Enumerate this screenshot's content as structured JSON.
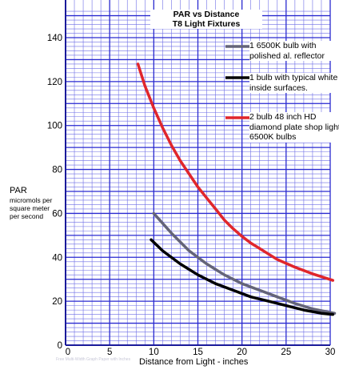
{
  "chart_data": {
    "type": "line",
    "title": "PAR vs Distance",
    "subtitle": "T8 Light Fixtures",
    "xlabel": "Distance from Light - inches",
    "ylabel": "PAR",
    "ylabel_sub": "micromols per square meter per second",
    "xlim": [
      0,
      30
    ],
    "ylim": [
      0,
      150
    ],
    "xticks": [
      0,
      5,
      10,
      15,
      20,
      25,
      30
    ],
    "yticks": [
      0,
      20,
      40,
      60,
      80,
      100,
      120,
      140
    ],
    "grid": true,
    "legend_placement": "top-right",
    "series": [
      {
        "name": "1 6500K bulb with polished al. reflector",
        "color": "#646478",
        "x": [
          10,
          12,
          14,
          16,
          18,
          20,
          22,
          24,
          26,
          28,
          30.5
        ],
        "y": [
          60,
          51,
          43,
          37,
          32,
          28,
          25,
          22,
          19,
          16.5,
          14.5
        ]
      },
      {
        "name": "1 bulb with typical white inside surfaces.",
        "color": "#000000",
        "x": [
          9.7,
          11,
          13,
          15,
          17,
          19,
          21,
          23,
          25,
          27,
          29,
          30.3
        ],
        "y": [
          48,
          43,
          37,
          32,
          28,
          25,
          22,
          20,
          18,
          16,
          14.5,
          14
        ]
      },
      {
        "name": "2 bulb 48 inch HD diamond plate shop light 6500K bulbs",
        "color": "#e0262c",
        "x": [
          8.2,
          9,
          10,
          11,
          12,
          13,
          14,
          15,
          16,
          17,
          18,
          19,
          20,
          21,
          22,
          23,
          24,
          26,
          28,
          30.3
        ],
        "y": [
          128,
          118,
          108,
          99,
          91,
          84,
          78,
          72,
          67,
          62,
          57,
          53,
          49.5,
          46.5,
          44,
          41.5,
          39,
          35.5,
          32.5,
          29.5
        ]
      }
    ]
  },
  "watermark_text": "Free Multi-Width Graph Paper with Inches"
}
